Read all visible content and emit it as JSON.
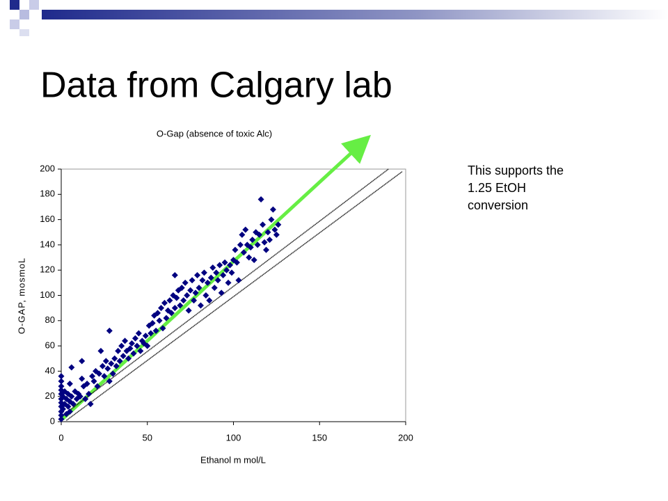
{
  "slide_title": "Data from Calgary lab",
  "note": [
    "This supports the",
    "1.25 EtOH",
    "conversion"
  ],
  "chart_data": {
    "type": "scatter",
    "title": "O-Gap (absence of toxic Alc)",
    "xlabel": "Ethanol m mol/L",
    "ylabel": "O-GAP, mosmoL",
    "color": "#000080",
    "x": [
      0,
      0,
      0,
      0,
      0,
      0,
      0,
      0,
      0,
      0,
      0,
      1,
      1,
      2,
      2,
      3,
      3,
      4,
      4,
      5,
      5,
      5,
      6,
      6,
      7,
      8,
      9,
      10,
      11,
      12,
      12,
      13,
      14,
      15,
      16,
      17,
      18,
      19,
      20,
      21,
      22,
      23,
      24,
      25,
      26,
      27,
      28,
      28,
      29,
      30,
      31,
      32,
      33,
      34,
      35,
      36,
      37,
      38,
      39,
      40,
      41,
      42,
      43,
      44,
      45,
      46,
      47,
      48,
      49,
      50,
      51,
      52,
      53,
      54,
      55,
      56,
      57,
      58,
      59,
      60,
      61,
      62,
      63,
      64,
      65,
      66,
      66,
      67,
      68,
      69,
      70,
      71,
      72,
      73,
      74,
      75,
      76,
      77,
      78,
      79,
      80,
      81,
      82,
      83,
      84,
      85,
      86,
      87,
      88,
      89,
      90,
      91,
      92,
      93,
      94,
      95,
      96,
      97,
      98,
      99,
      100,
      101,
      102,
      103,
      104,
      105,
      106,
      107,
      108,
      109,
      110,
      111,
      112,
      113,
      114,
      115,
      116,
      117,
      118,
      119,
      120,
      121,
      122,
      123,
      124,
      125,
      126
    ],
    "values": [
      2,
      5,
      8,
      12,
      15,
      18,
      22,
      25,
      28,
      32,
      36,
      10,
      20,
      14,
      24,
      6,
      18,
      12,
      22,
      8,
      16,
      30,
      43,
      20,
      14,
      24,
      18,
      22,
      20,
      34,
      48,
      28,
      18,
      30,
      22,
      14,
      36,
      32,
      40,
      28,
      38,
      56,
      44,
      36,
      48,
      42,
      72,
      32,
      46,
      38,
      50,
      44,
      56,
      48,
      60,
      52,
      64,
      56,
      50,
      58,
      62,
      54,
      66,
      60,
      70,
      56,
      64,
      62,
      68,
      60,
      76,
      70,
      78,
      84,
      72,
      86,
      80,
      90,
      74,
      94,
      82,
      88,
      96,
      86,
      100,
      116,
      90,
      98,
      104,
      92,
      106,
      96,
      110,
      100,
      88,
      104,
      112,
      96,
      102,
      116,
      106,
      92,
      112,
      118,
      100,
      110,
      96,
      114,
      122,
      106,
      118,
      112,
      124,
      102,
      116,
      126,
      120,
      110,
      124,
      118,
      128,
      136,
      126,
      112,
      140,
      148,
      134,
      152,
      140,
      130,
      138,
      144,
      128,
      150,
      140,
      148,
      176,
      156,
      142,
      136,
      150,
      144,
      160,
      168,
      152,
      148,
      156
    ],
    "lines": [
      {
        "color": "#000000",
        "x": [
          0,
          190
        ],
        "values": [
          4,
          200
        ]
      },
      {
        "color": "#000000",
        "x": [
          3,
          198
        ],
        "values": [
          1,
          198
        ]
      }
    ],
    "xlim": [
      0,
      200
    ],
    "ylim": [
      0,
      200
    ],
    "xticks": [
      0,
      50,
      100,
      150,
      200
    ],
    "yticks": [
      0,
      20,
      40,
      60,
      80,
      100,
      120,
      140,
      160,
      180,
      200
    ],
    "grid": false
  }
}
